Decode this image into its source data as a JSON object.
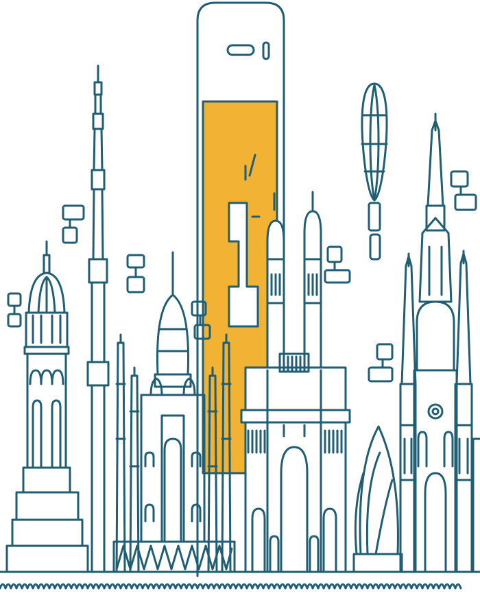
{
  "illustration": {
    "colors": {
      "line": "#1f5e73",
      "accent": "#f2b233",
      "background": "#ffffff"
    },
    "icons": [
      "phone-outline-icon",
      "number-one-glyph",
      "hot-air-balloon-icon",
      "cloud-icon"
    ]
  }
}
